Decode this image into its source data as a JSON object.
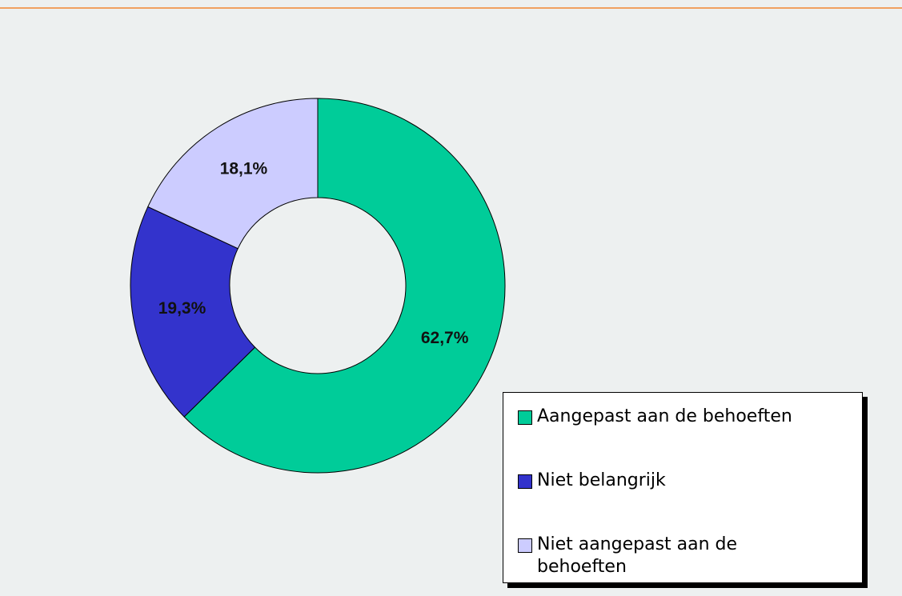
{
  "chart_data": {
    "type": "donut",
    "categories": [
      "Aangepast aan de behoeften",
      "Niet belangrijk",
      "Niet aangepast aan de behoeften"
    ],
    "values": [
      62.7,
      19.3,
      18.1
    ],
    "value_labels": [
      "62,7%",
      "19,3%",
      "18,1%"
    ],
    "colors": [
      "#00cc99",
      "#3333cc",
      "#ccccff"
    ],
    "legend": "bottom-right"
  }
}
